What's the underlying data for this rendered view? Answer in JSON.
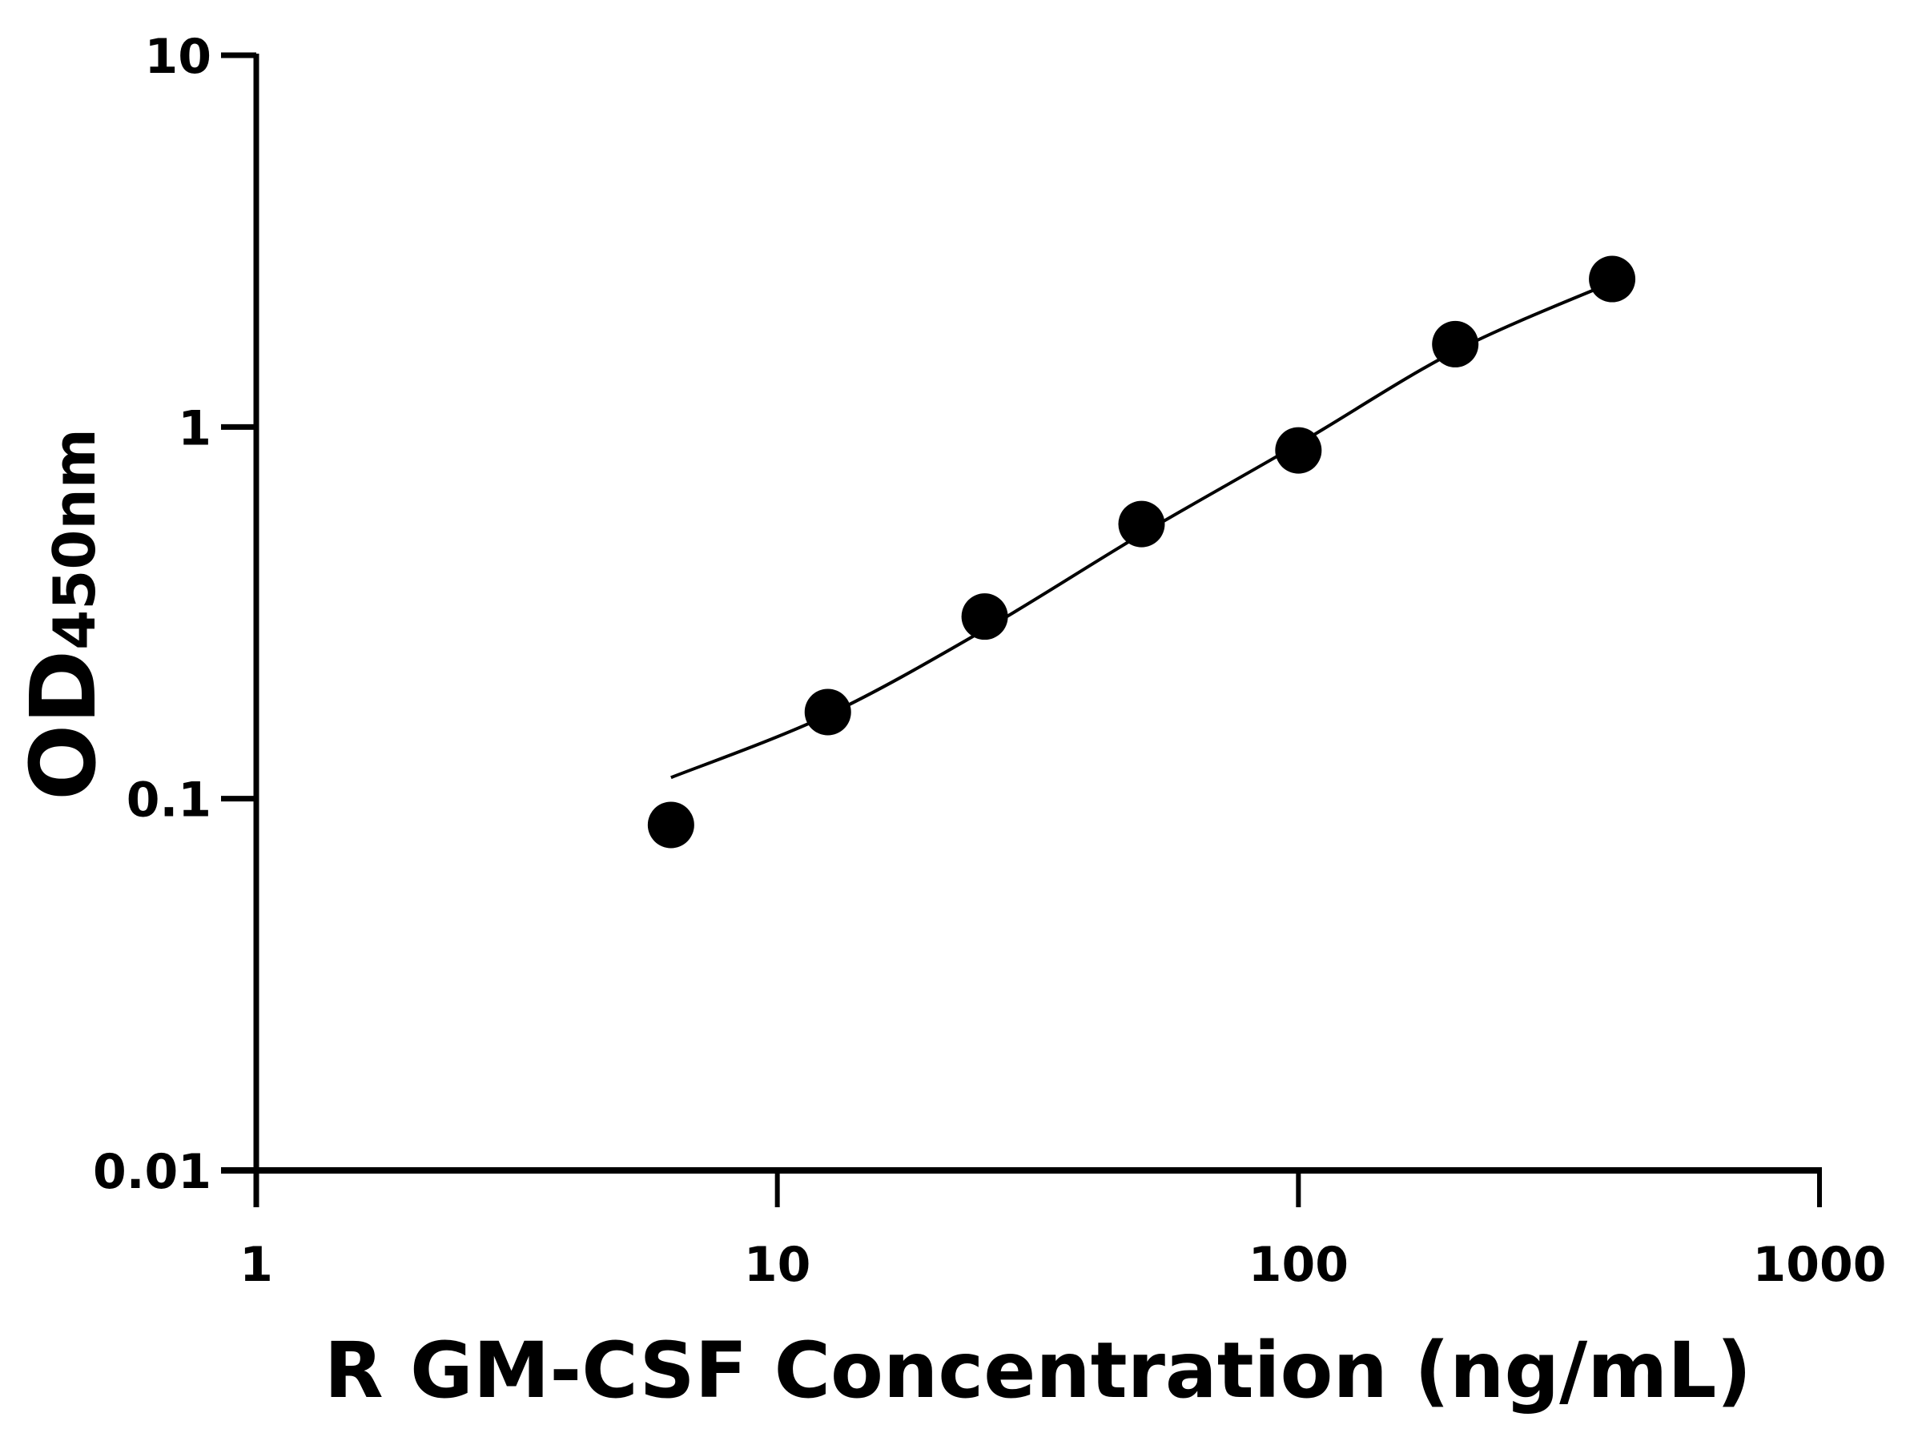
{
  "chart_data": {
    "type": "scatter",
    "title": "",
    "xlabel": "R GM-CSF Concentration (ng/mL)",
    "ylabel": {
      "main": "OD",
      "subscript": "450nm"
    },
    "xscale": "log",
    "yscale": "log",
    "xlim": [
      1,
      1000
    ],
    "ylim": [
      0.01,
      10
    ],
    "xticks": [
      "1",
      "10",
      "100",
      "1000"
    ],
    "yticks": [
      "0.01",
      "0.1",
      "1",
      "10"
    ],
    "grid": false,
    "points": {
      "x": [
        6.25,
        12.5,
        25,
        50,
        100,
        200,
        400
      ],
      "y": [
        0.085,
        0.171,
        0.309,
        0.548,
        0.865,
        1.67,
        2.5
      ]
    },
    "fit_curve": {
      "x": [
        6.25,
        12.5,
        25,
        50,
        100,
        200,
        400
      ],
      "y": [
        0.114,
        0.168,
        0.285,
        0.515,
        0.9,
        1.6,
        2.45
      ]
    },
    "colors": {
      "points": "#000000",
      "curve": "#000000"
    }
  }
}
